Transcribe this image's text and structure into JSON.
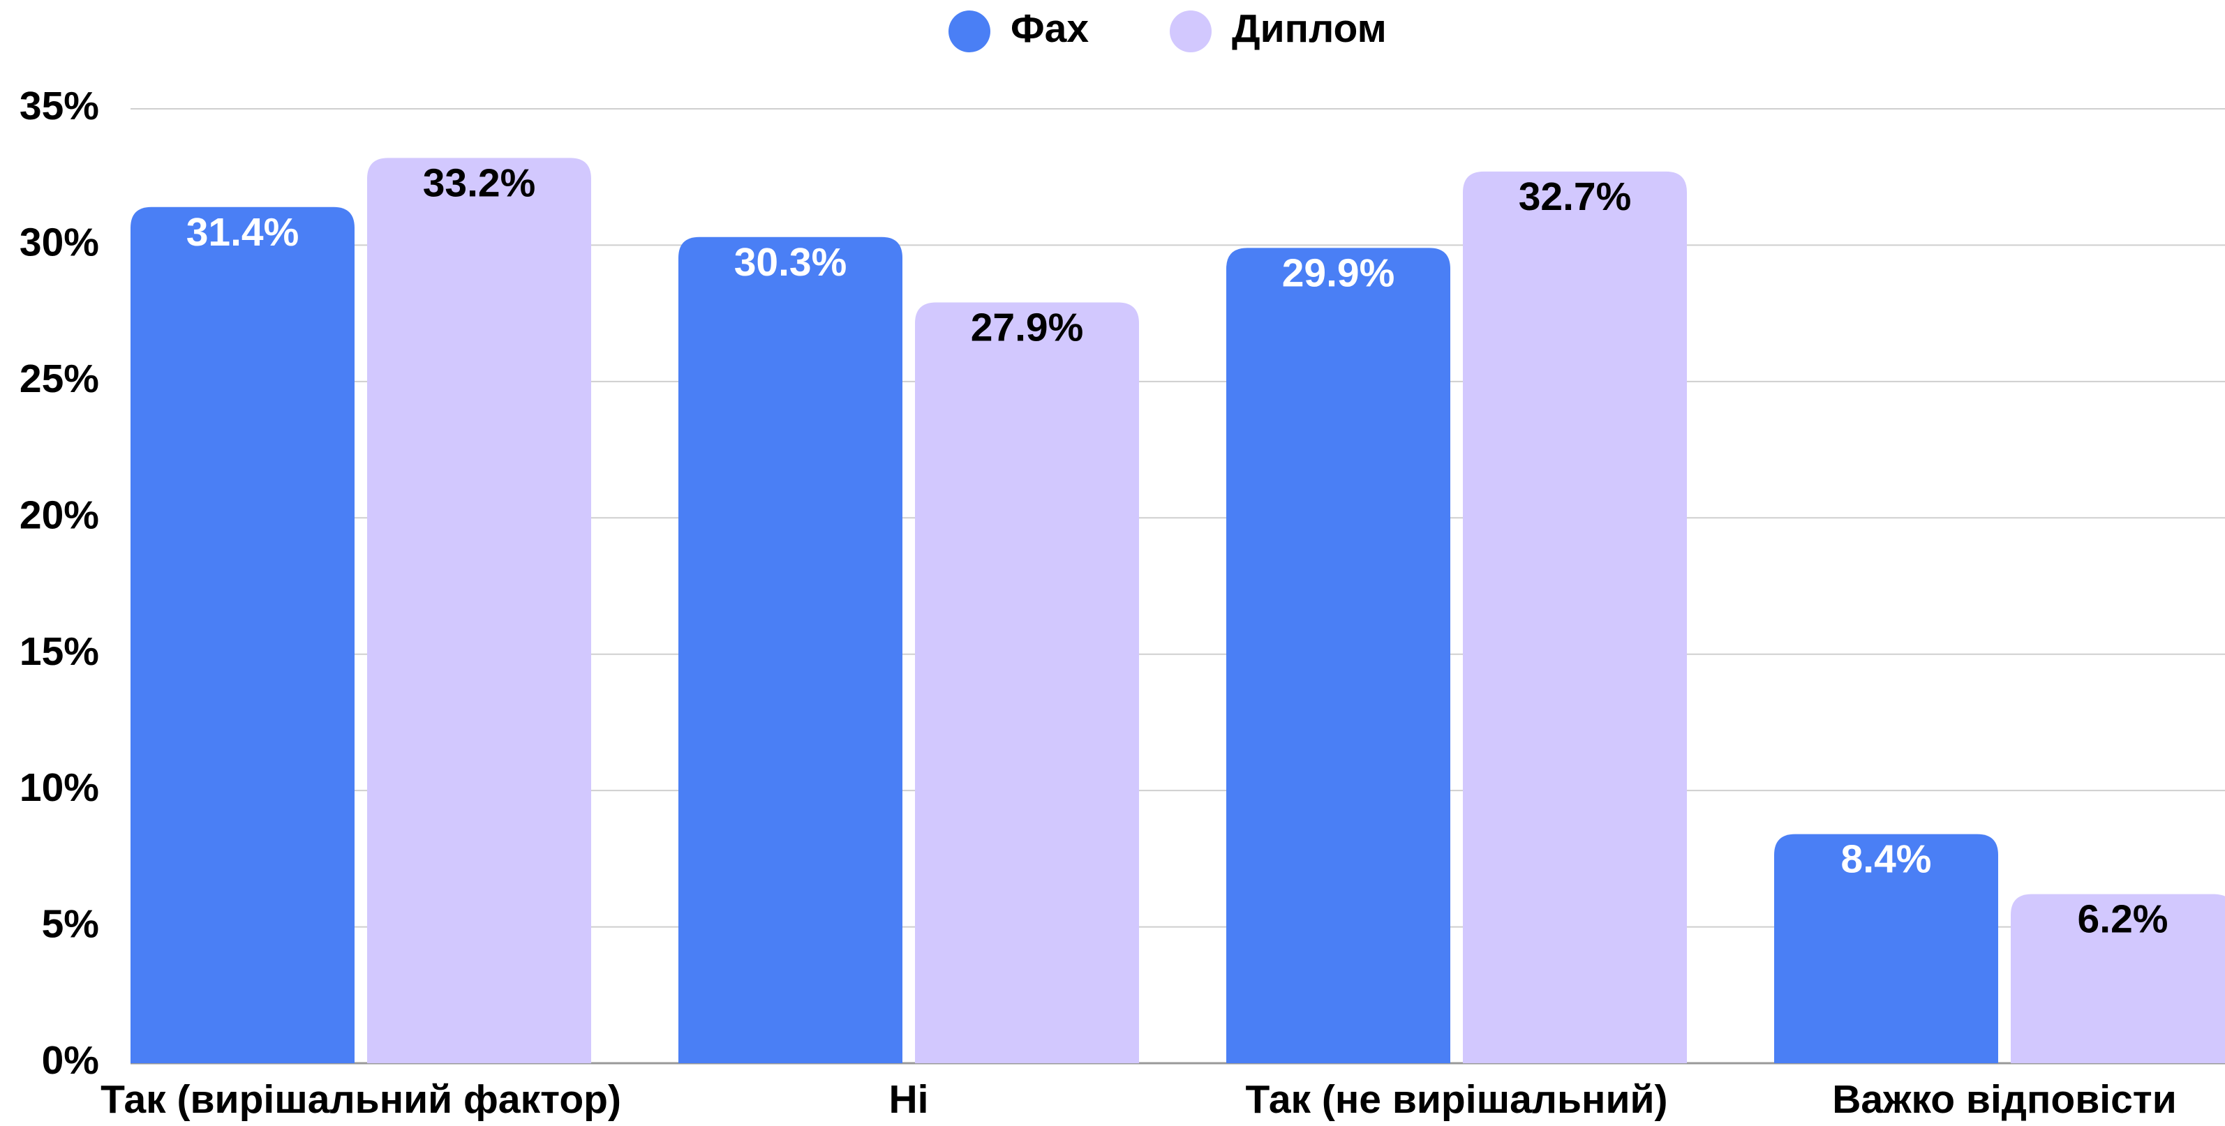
{
  "chart_data": {
    "type": "bar",
    "categories": [
      "Так (вирішальний фактор)",
      "Ні",
      "Так (не вирішальний)",
      "Важко відповісти"
    ],
    "series": [
      {
        "name": "Фах",
        "color": "#4a7ff5",
        "values": [
          31.4,
          30.3,
          29.9,
          8.4
        ],
        "value_labels": [
          "31.4%",
          "30.3%",
          "29.9%",
          "8.4%"
        ]
      },
      {
        "name": "Диплом",
        "color": "#d2c8fe",
        "values": [
          33.2,
          27.9,
          32.7,
          6.2
        ],
        "value_labels": [
          "33.2%",
          "27.9%",
          "32.7%",
          "6.2%"
        ]
      }
    ],
    "ylim": [
      0,
      35
    ],
    "yticks": [
      {
        "value": 0,
        "label": "0%"
      },
      {
        "value": 5,
        "label": "5%"
      },
      {
        "value": 10,
        "label": "10%"
      },
      {
        "value": 15,
        "label": "15%"
      },
      {
        "value": 20,
        "label": "20%"
      },
      {
        "value": 25,
        "label": "25%"
      },
      {
        "value": 30,
        "label": "30%"
      },
      {
        "value": 35,
        "label": "35%"
      }
    ],
    "grid": true,
    "legend": "top"
  }
}
